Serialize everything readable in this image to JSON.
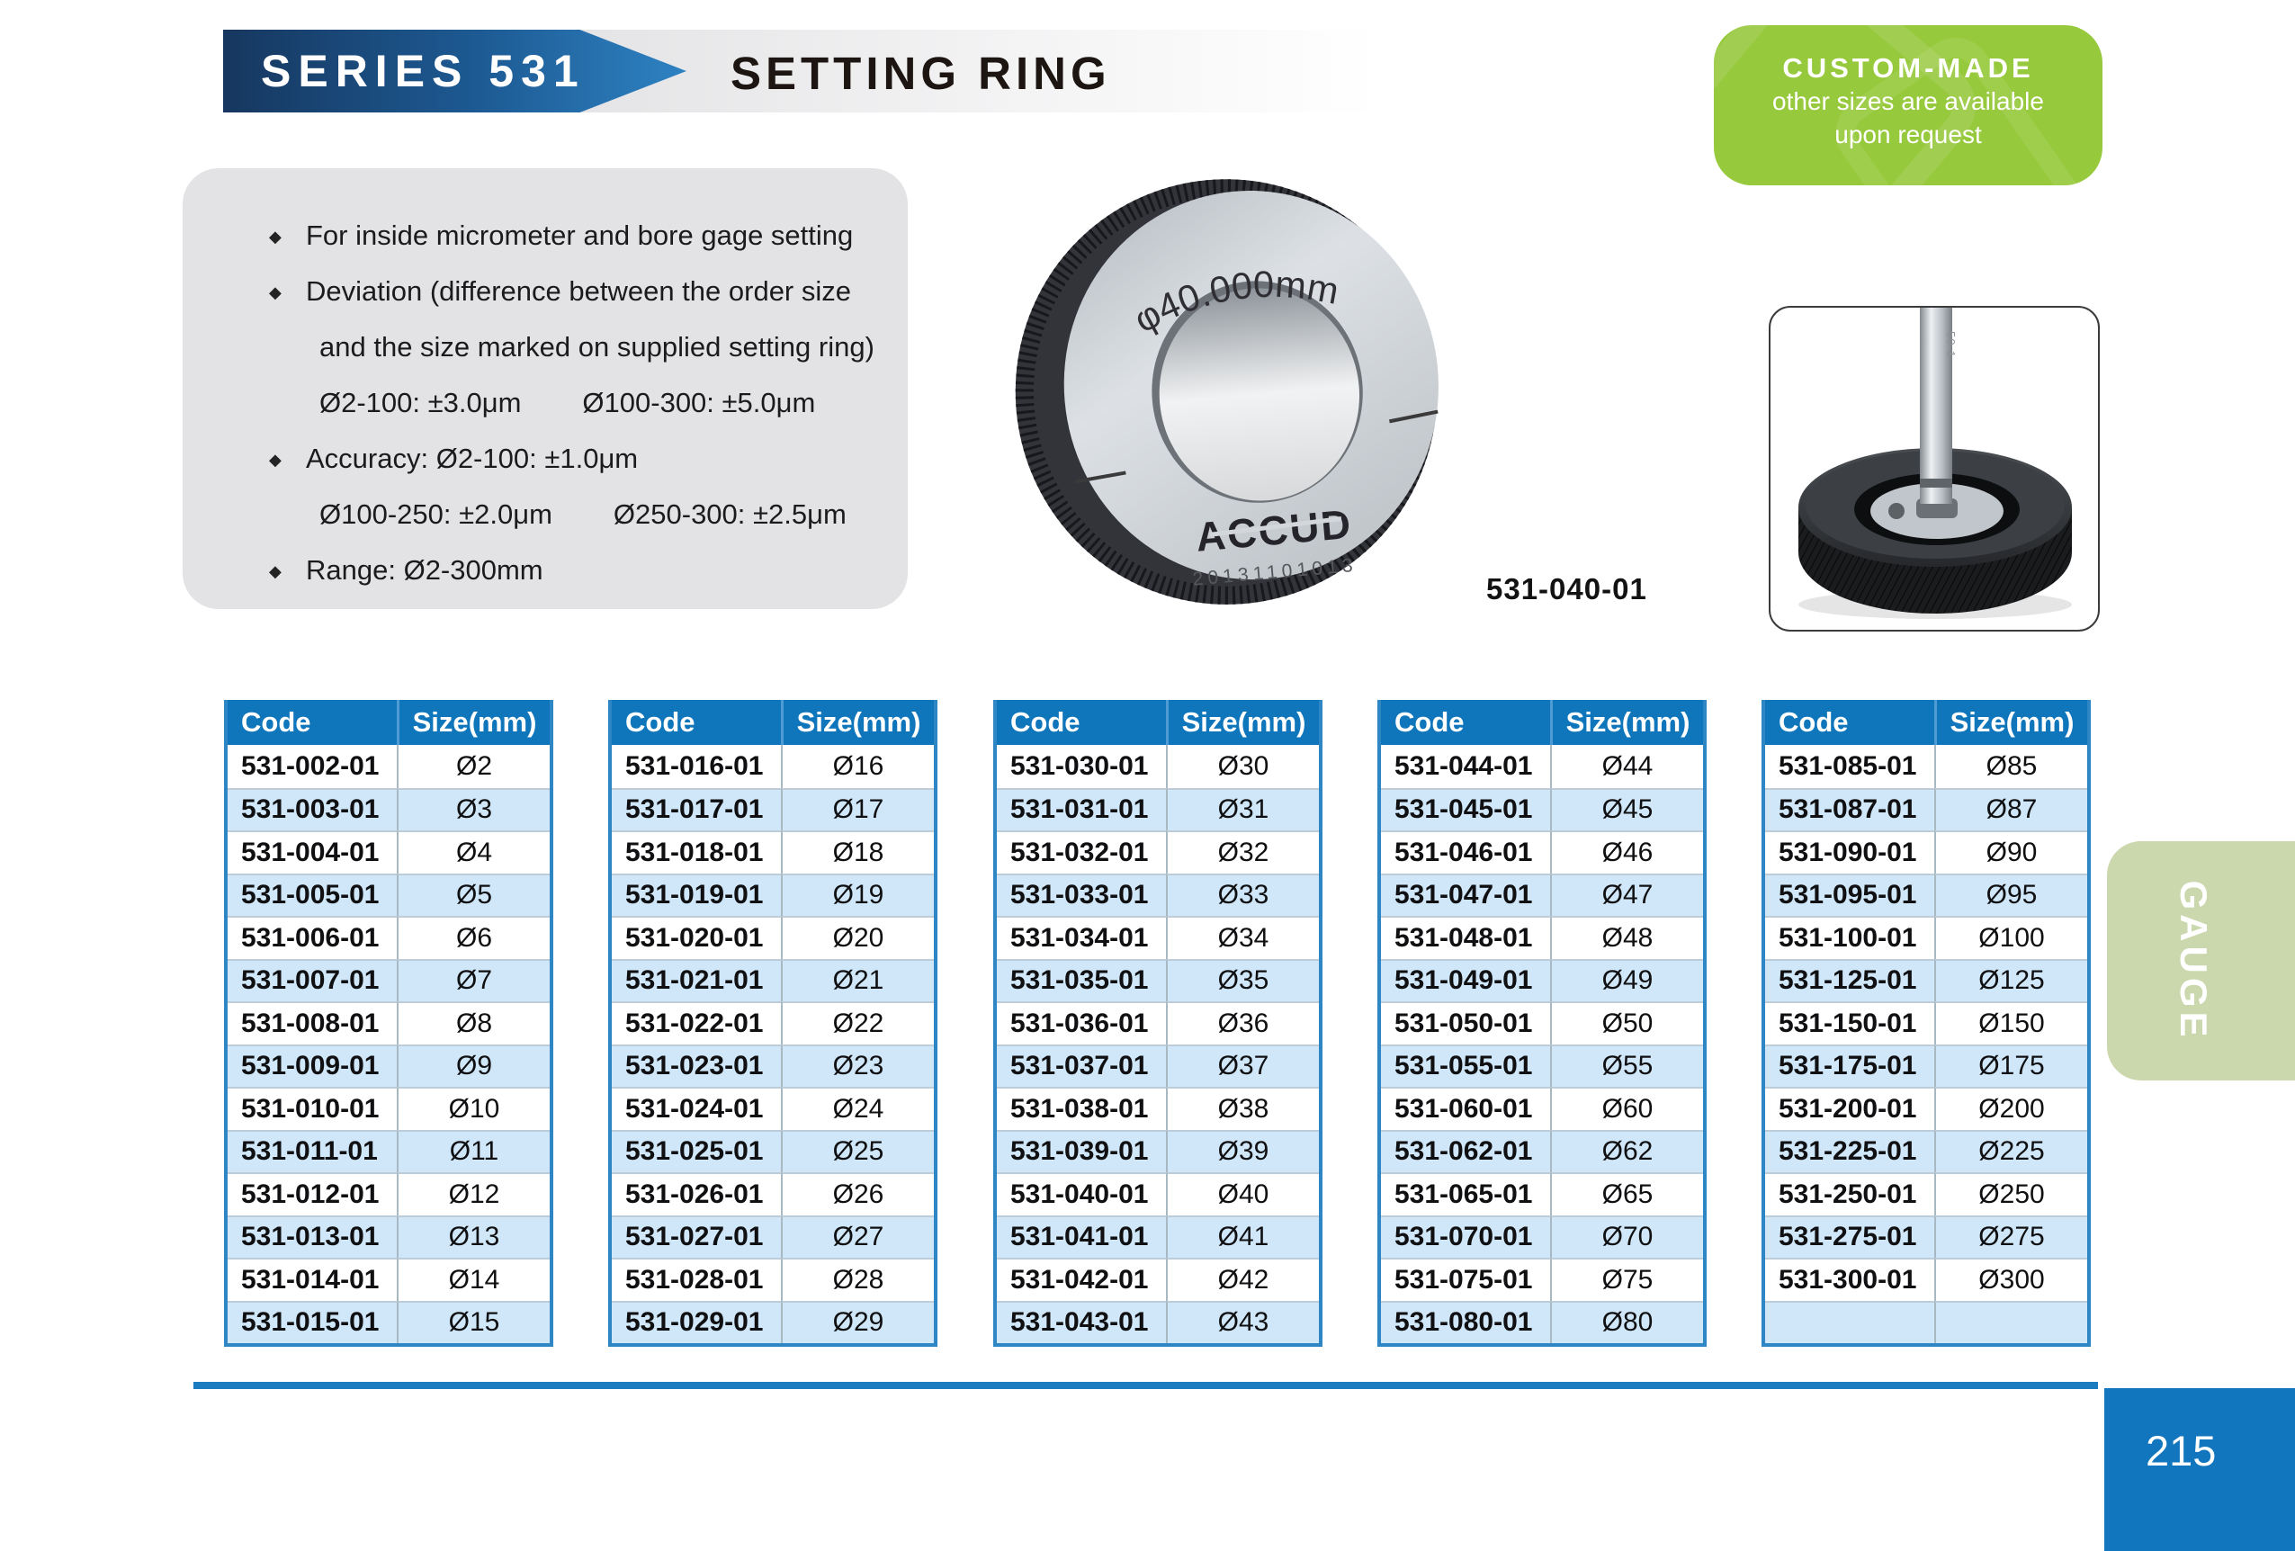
{
  "header": {
    "series": "SERIES 531",
    "title": "SETTING RING"
  },
  "badge": {
    "title": "CUSTOM-MADE",
    "lines": [
      "other sizes are available",
      "upon request"
    ]
  },
  "features": [
    {
      "bullet": true,
      "segments": [
        "For inside micrometer and bore gage setting"
      ]
    },
    {
      "bullet": true,
      "segments": [
        "Deviation (difference between the order size"
      ]
    },
    {
      "bullet": false,
      "segments": [
        "and the size marked on supplied setting ring)"
      ]
    },
    {
      "bullet": false,
      "segments": [
        "Ø2-100: ±3.0μm",
        "Ø100-300: ±5.0μm"
      ]
    },
    {
      "bullet": true,
      "segments": [
        "Accuracy: Ø2-100:  ±1.0μm"
      ]
    },
    {
      "bullet": false,
      "segments": [
        "Ø100-250: ±2.0μm",
        "Ø250-300:  ±2.5μm"
      ]
    },
    {
      "bullet": true,
      "segments": [
        "Range: Ø2-300mm"
      ]
    }
  ],
  "product_photos": {
    "ring_marking_diameter": "φ40.000mm",
    "ring_brand": "ACCUD",
    "ring_serial": "20131101013",
    "ring_caption": "531-040-01",
    "rod_label": "50-1"
  },
  "tables": [
    {
      "headers": [
        "Code",
        "Size(mm)"
      ],
      "rows": [
        [
          "531-002-01",
          "Ø2"
        ],
        [
          "531-003-01",
          "Ø3"
        ],
        [
          "531-004-01",
          "Ø4"
        ],
        [
          "531-005-01",
          "Ø5"
        ],
        [
          "531-006-01",
          "Ø6"
        ],
        [
          "531-007-01",
          "Ø7"
        ],
        [
          "531-008-01",
          "Ø8"
        ],
        [
          "531-009-01",
          "Ø9"
        ],
        [
          "531-010-01",
          "Ø10"
        ],
        [
          "531-011-01",
          "Ø11"
        ],
        [
          "531-012-01",
          "Ø12"
        ],
        [
          "531-013-01",
          "Ø13"
        ],
        [
          "531-014-01",
          "Ø14"
        ],
        [
          "531-015-01",
          "Ø15"
        ]
      ]
    },
    {
      "headers": [
        "Code",
        "Size(mm)"
      ],
      "rows": [
        [
          "531-016-01",
          "Ø16"
        ],
        [
          "531-017-01",
          "Ø17"
        ],
        [
          "531-018-01",
          "Ø18"
        ],
        [
          "531-019-01",
          "Ø19"
        ],
        [
          "531-020-01",
          "Ø20"
        ],
        [
          "531-021-01",
          "Ø21"
        ],
        [
          "531-022-01",
          "Ø22"
        ],
        [
          "531-023-01",
          "Ø23"
        ],
        [
          "531-024-01",
          "Ø24"
        ],
        [
          "531-025-01",
          "Ø25"
        ],
        [
          "531-026-01",
          "Ø26"
        ],
        [
          "531-027-01",
          "Ø27"
        ],
        [
          "531-028-01",
          "Ø28"
        ],
        [
          "531-029-01",
          "Ø29"
        ]
      ]
    },
    {
      "headers": [
        "Code",
        "Size(mm)"
      ],
      "rows": [
        [
          "531-030-01",
          "Ø30"
        ],
        [
          "531-031-01",
          "Ø31"
        ],
        [
          "531-032-01",
          "Ø32"
        ],
        [
          "531-033-01",
          "Ø33"
        ],
        [
          "531-034-01",
          "Ø34"
        ],
        [
          "531-035-01",
          "Ø35"
        ],
        [
          "531-036-01",
          "Ø36"
        ],
        [
          "531-037-01",
          "Ø37"
        ],
        [
          "531-038-01",
          "Ø38"
        ],
        [
          "531-039-01",
          "Ø39"
        ],
        [
          "531-040-01",
          "Ø40"
        ],
        [
          "531-041-01",
          "Ø41"
        ],
        [
          "531-042-01",
          "Ø42"
        ],
        [
          "531-043-01",
          "Ø43"
        ]
      ]
    },
    {
      "headers": [
        "Code",
        "Size(mm)"
      ],
      "rows": [
        [
          "531-044-01",
          "Ø44"
        ],
        [
          "531-045-01",
          "Ø45"
        ],
        [
          "531-046-01",
          "Ø46"
        ],
        [
          "531-047-01",
          "Ø47"
        ],
        [
          "531-048-01",
          "Ø48"
        ],
        [
          "531-049-01",
          "Ø49"
        ],
        [
          "531-050-01",
          "Ø50"
        ],
        [
          "531-055-01",
          "Ø55"
        ],
        [
          "531-060-01",
          "Ø60"
        ],
        [
          "531-062-01",
          "Ø62"
        ],
        [
          "531-065-01",
          "Ø65"
        ],
        [
          "531-070-01",
          "Ø70"
        ],
        [
          "531-075-01",
          "Ø75"
        ],
        [
          "531-080-01",
          "Ø80"
        ]
      ]
    },
    {
      "headers": [
        "Code",
        "Size(mm)"
      ],
      "rows": [
        [
          "531-085-01",
          "Ø85"
        ],
        [
          "531-087-01",
          "Ø87"
        ],
        [
          "531-090-01",
          "Ø90"
        ],
        [
          "531-095-01",
          "Ø95"
        ],
        [
          "531-100-01",
          "Ø100"
        ],
        [
          "531-125-01",
          "Ø125"
        ],
        [
          "531-150-01",
          "Ø150"
        ],
        [
          "531-175-01",
          "Ø175"
        ],
        [
          "531-200-01",
          "Ø200"
        ],
        [
          "531-225-01",
          "Ø225"
        ],
        [
          "531-250-01",
          "Ø250"
        ],
        [
          "531-275-01",
          "Ø275"
        ],
        [
          "531-300-01",
          "Ø300"
        ],
        [
          "",
          ""
        ]
      ]
    }
  ],
  "side_tab": {
    "label": "GAUGE"
  },
  "page": {
    "number": "215"
  },
  "colors": {
    "accent_blue": "#0f76bc",
    "table_row_alt": "#cfe7f8",
    "table_border": "#2e87c4",
    "badge_green": "#97c93d",
    "tab_green": "#cbd7ad",
    "page_number_bg": "#1176bd",
    "banner_gradient_start": "#16375f",
    "banner_gradient_end": "#2e82c2"
  }
}
